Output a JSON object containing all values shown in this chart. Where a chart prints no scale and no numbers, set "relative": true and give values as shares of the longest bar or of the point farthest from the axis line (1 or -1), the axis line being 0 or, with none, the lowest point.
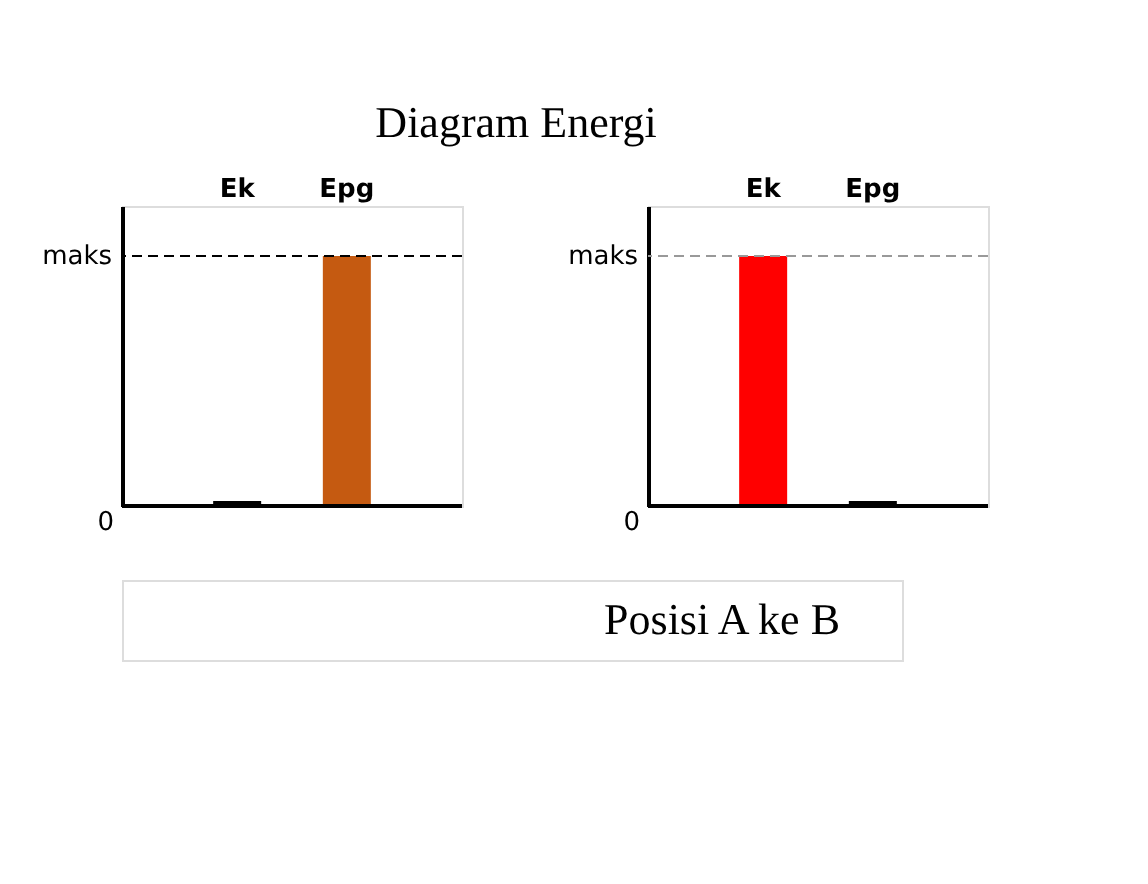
{
  "chart_data": [
    {
      "type": "bar",
      "title": "Diagram Energi",
      "relative": true,
      "annotations": [
        "0"
      ],
      "categories": [
        "Ek",
        "Epg"
      ],
      "values": [
        0.02,
        1
      ],
      "colors": [
        "#000000",
        "#c55a11"
      ],
      "ref_lines": [
        {
          "axis": "y",
          "value": 1,
          "label": "maks",
          "color": "#000000",
          "line_style": "dashed"
        }
      ],
      "grid": false
    },
    {
      "type": "bar",
      "relative": true,
      "annotations": [
        "0",
        "Posisi A ke B"
      ],
      "categories": [
        "Ek",
        "Epg"
      ],
      "values": [
        1,
        0.02
      ],
      "colors": [
        "#ff0000",
        "#000000"
      ],
      "ref_lines": [
        {
          "axis": "y",
          "value": 1,
          "label": "maks",
          "color": "#999999",
          "line_style": "dashed"
        }
      ],
      "grid": false
    }
  ]
}
